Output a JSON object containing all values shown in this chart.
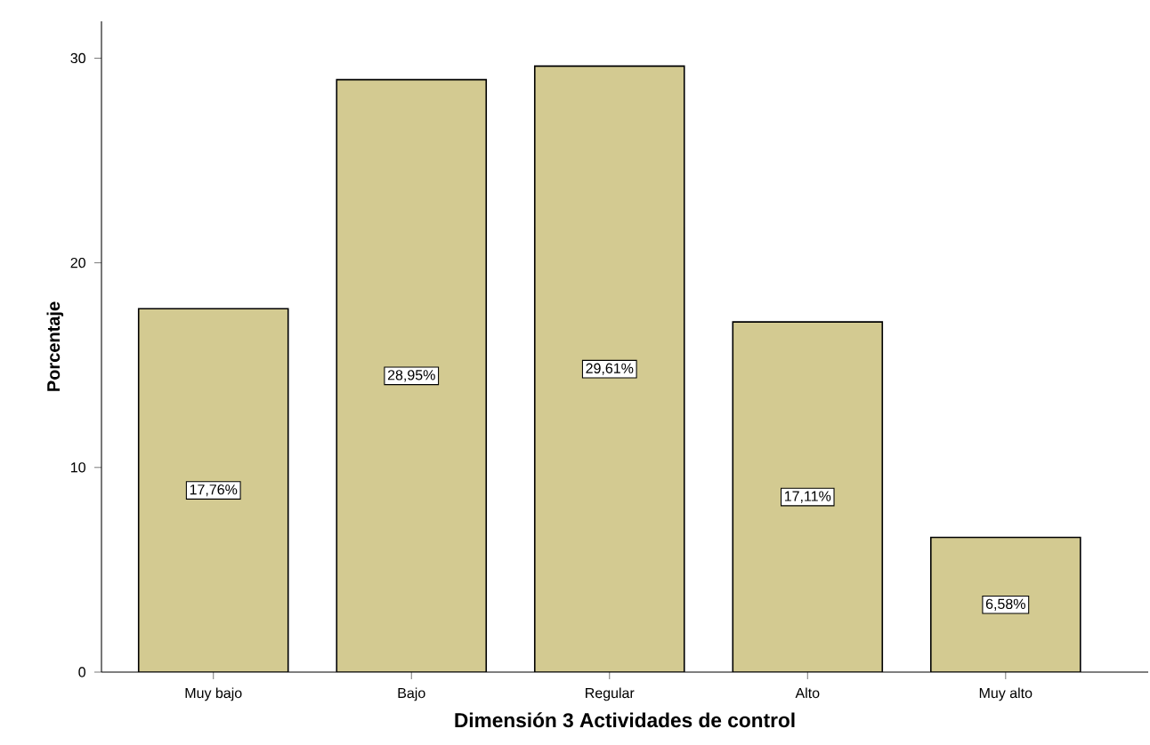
{
  "chart_data": {
    "type": "bar",
    "xlabel": "Dimensión 3 Actividades de control",
    "ylabel": "Porcentaje",
    "categories": [
      "Muy bajo",
      "Bajo",
      "Regular",
      "Alto",
      "Muy alto"
    ],
    "values": [
      17.76,
      28.95,
      29.61,
      17.11,
      6.58
    ],
    "value_labels": [
      "17,76%",
      "28,95%",
      "29,61%",
      "17,11%",
      "6,58%"
    ],
    "color": "#d3ca91",
    "ylim": [
      0,
      31.8
    ],
    "yticks": [
      0,
      10,
      20,
      30
    ],
    "grid": false
  }
}
